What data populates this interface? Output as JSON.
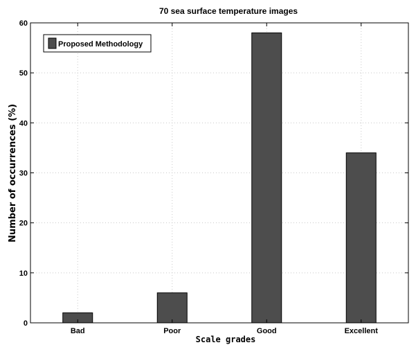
{
  "chart_data": {
    "type": "bar",
    "title": "70 sea surface temperature images",
    "xlabel": "Scale grades",
    "ylabel": "Number of occurrences (%)",
    "categories": [
      "Bad",
      "Poor",
      "Good",
      "Excellent"
    ],
    "series": [
      {
        "name": "Proposed Methodology",
        "values": [
          2,
          6,
          58,
          34
        ]
      }
    ],
    "ylim": [
      0,
      60
    ],
    "yticks": [
      0,
      10,
      20,
      30,
      40,
      50,
      60
    ],
    "grid": true,
    "legend": "top-left",
    "colors": {
      "bar": "#4d4d4d",
      "bar_edge": "#000000",
      "grid": "#c8c8c8",
      "axis": "#000000"
    }
  }
}
